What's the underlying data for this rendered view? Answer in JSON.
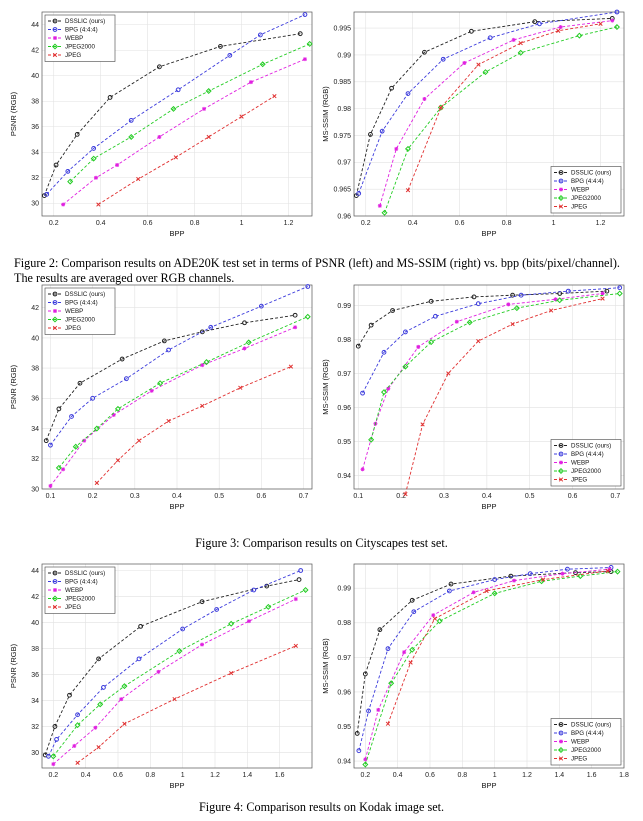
{
  "figures": [
    {
      "number_label": "Figure 2:",
      "caption": "Comparison results on ADE20K test set in terms of PSNR (left) and MS-SSIM (right) vs. bpp (bits/pixel/channel). The results are averaged over RGB channels."
    },
    {
      "number_label": "Figure 3:",
      "caption": "Comparison results on Cityscapes test set."
    },
    {
      "number_label": "Figure 4:",
      "caption": "Comparison results on Kodak image set."
    }
  ],
  "series_styles": [
    {
      "name": "DSSLIC (ours)",
      "color": "#222222",
      "marker": "circle",
      "dash": "3,2"
    },
    {
      "name": "BPG (4:4:4)",
      "color": "#3b3bdc",
      "marker": "circle",
      "dash": "3,2"
    },
    {
      "name": "WEBP",
      "color": "#e020e0",
      "marker": "star",
      "dash": "3,2"
    },
    {
      "name": "JPEG2000",
      "color": "#22cc22",
      "marker": "diamond",
      "dash": "3,2"
    },
    {
      "name": "JPEG",
      "color": "#e03030",
      "marker": "x",
      "dash": "3,2"
    }
  ],
  "chart_data": [
    {
      "type": "line",
      "figure": 2,
      "xlabel": "BPP",
      "ylabel": "PSNR (RGB)",
      "xlim": [
        0.15,
        1.3
      ],
      "ylim": [
        29,
        45
      ],
      "xticks": [
        0.2,
        0.4,
        0.6,
        0.8,
        1,
        1.2
      ],
      "yticks": [
        30,
        32,
        34,
        36,
        38,
        40,
        42,
        44
      ],
      "grid": true,
      "legend": "top-left",
      "series": [
        {
          "name": "DSSLIC (ours)",
          "x": [
            0.16,
            0.21,
            0.3,
            0.44,
            0.65,
            0.91,
            1.25
          ],
          "y": [
            30.6,
            33.0,
            35.4,
            38.3,
            40.7,
            42.3,
            43.3
          ]
        },
        {
          "name": "BPG (4:4:4)",
          "x": [
            0.17,
            0.26,
            0.37,
            0.53,
            0.73,
            0.95,
            1.08,
            1.27
          ],
          "y": [
            30.7,
            32.5,
            34.3,
            36.5,
            38.9,
            41.6,
            43.2,
            44.8
          ]
        },
        {
          "name": "WEBP",
          "x": [
            0.24,
            0.38,
            0.47,
            0.65,
            0.84,
            1.04,
            1.27
          ],
          "y": [
            29.9,
            32.0,
            33.0,
            35.2,
            37.4,
            39.5,
            41.3
          ]
        },
        {
          "name": "JPEG2000",
          "x": [
            0.27,
            0.37,
            0.53,
            0.71,
            0.86,
            1.09,
            1.29
          ],
          "y": [
            31.7,
            33.5,
            35.2,
            37.4,
            38.8,
            40.9,
            42.5
          ]
        },
        {
          "name": "JPEG",
          "x": [
            0.39,
            0.56,
            0.72,
            0.86,
            1.0,
            1.14
          ],
          "y": [
            29.9,
            31.9,
            33.6,
            35.2,
            36.8,
            38.4
          ]
        }
      ]
    },
    {
      "type": "line",
      "figure": 2,
      "xlabel": "BPP",
      "ylabel": "MS-SSIM (RGB)",
      "xlim": [
        0.15,
        1.3
      ],
      "ylim": [
        0.96,
        0.998
      ],
      "xticks": [
        0.2,
        0.4,
        0.6,
        0.8,
        1,
        1.2
      ],
      "yticks": [
        0.96,
        0.965,
        0.97,
        0.975,
        0.98,
        0.985,
        0.99,
        0.995
      ],
      "grid": true,
      "legend": "bottom-right",
      "series": [
        {
          "name": "DSSLIC (ours)",
          "x": [
            0.16,
            0.22,
            0.31,
            0.45,
            0.65,
            0.92,
            1.25
          ],
          "y": [
            0.9638,
            0.9752,
            0.9838,
            0.9905,
            0.9944,
            0.9962,
            0.9968
          ]
        },
        {
          "name": "BPG (4:4:4)",
          "x": [
            0.17,
            0.27,
            0.38,
            0.53,
            0.73,
            0.94,
            1.27
          ],
          "y": [
            0.9642,
            0.9758,
            0.9828,
            0.9892,
            0.9932,
            0.9958,
            0.998
          ]
        },
        {
          "name": "WEBP",
          "x": [
            0.26,
            0.33,
            0.45,
            0.62,
            0.83,
            1.03,
            1.25
          ],
          "y": [
            0.9619,
            0.9725,
            0.9818,
            0.9885,
            0.9928,
            0.9952,
            0.9964
          ]
        },
        {
          "name": "JPEG2000",
          "x": [
            0.28,
            0.38,
            0.52,
            0.71,
            0.86,
            1.11,
            1.27
          ],
          "y": [
            0.9606,
            0.9725,
            0.9802,
            0.9868,
            0.9904,
            0.9936,
            0.9952
          ]
        },
        {
          "name": "JPEG",
          "x": [
            0.38,
            0.52,
            0.68,
            0.86,
            1.02,
            1.2
          ],
          "y": [
            0.9648,
            0.9802,
            0.9882,
            0.9922,
            0.9945,
            0.9958
          ]
        }
      ]
    },
    {
      "type": "line",
      "figure": 3,
      "xlabel": "BPP",
      "ylabel": "PSNR (RGB)",
      "xlim": [
        0.08,
        0.72
      ],
      "ylim": [
        30,
        43.5
      ],
      "xticks": [
        0.1,
        0.2,
        0.3,
        0.4,
        0.5,
        0.6,
        0.7
      ],
      "yticks": [
        30,
        32,
        34,
        36,
        38,
        40,
        42
      ],
      "grid": true,
      "legend": "top-left",
      "series": [
        {
          "name": "DSSLIC (ours)",
          "x": [
            0.09,
            0.12,
            0.17,
            0.27,
            0.37,
            0.46,
            0.56,
            0.68
          ],
          "y": [
            33.2,
            35.3,
            37.0,
            38.6,
            39.8,
            40.4,
            41.0,
            41.5
          ]
        },
        {
          "name": "BPG (4:4:4)",
          "x": [
            0.1,
            0.15,
            0.2,
            0.28,
            0.38,
            0.48,
            0.6,
            0.71
          ],
          "y": [
            32.9,
            34.8,
            36.0,
            37.3,
            39.2,
            40.7,
            42.1,
            43.4
          ]
        },
        {
          "name": "WEBP",
          "x": [
            0.1,
            0.13,
            0.18,
            0.25,
            0.34,
            0.46,
            0.56,
            0.68
          ],
          "y": [
            30.2,
            31.3,
            33.2,
            34.9,
            36.5,
            38.2,
            39.3,
            40.7
          ]
        },
        {
          "name": "JPEG2000",
          "x": [
            0.12,
            0.16,
            0.21,
            0.26,
            0.36,
            0.47,
            0.57,
            0.71
          ],
          "y": [
            31.4,
            32.8,
            34.0,
            35.3,
            37.0,
            38.4,
            39.7,
            41.4
          ]
        },
        {
          "name": "JPEG",
          "x": [
            0.21,
            0.26,
            0.31,
            0.38,
            0.46,
            0.55,
            0.67
          ],
          "y": [
            30.4,
            31.9,
            33.2,
            34.5,
            35.5,
            36.7,
            38.1
          ]
        }
      ]
    },
    {
      "type": "line",
      "figure": 3,
      "xlabel": "BPP",
      "ylabel": "MS-SSIM (RGB)",
      "xlim": [
        0.09,
        0.72
      ],
      "ylim": [
        0.936,
        0.996
      ],
      "xticks": [
        0.1,
        0.2,
        0.3,
        0.4,
        0.5,
        0.6,
        0.7
      ],
      "yticks": [
        0.94,
        0.95,
        0.96,
        0.97,
        0.98,
        0.99
      ],
      "grid": true,
      "legend": "bottom-right",
      "series": [
        {
          "name": "DSSLIC (ours)",
          "x": [
            0.1,
            0.13,
            0.18,
            0.27,
            0.37,
            0.46,
            0.57,
            0.68
          ],
          "y": [
            0.978,
            0.9842,
            0.9885,
            0.9912,
            0.9925,
            0.993,
            0.9935,
            0.9942
          ]
        },
        {
          "name": "BPG (4:4:4)",
          "x": [
            0.11,
            0.16,
            0.21,
            0.28,
            0.38,
            0.48,
            0.59,
            0.71
          ],
          "y": [
            0.9642,
            0.9762,
            0.9822,
            0.9868,
            0.9905,
            0.993,
            0.9942,
            0.9952
          ]
        },
        {
          "name": "WEBP",
          "x": [
            0.11,
            0.14,
            0.17,
            0.24,
            0.33,
            0.45,
            0.56,
            0.67
          ],
          "y": [
            0.9418,
            0.9552,
            0.9655,
            0.9778,
            0.9852,
            0.9903,
            0.9918,
            0.9935
          ]
        },
        {
          "name": "JPEG2000",
          "x": [
            0.13,
            0.16,
            0.21,
            0.27,
            0.36,
            0.47,
            0.57,
            0.71
          ],
          "y": [
            0.9505,
            0.9645,
            0.972,
            0.9792,
            0.985,
            0.9892,
            0.9915,
            0.9935
          ]
        },
        {
          "name": "JPEG",
          "x": [
            0.21,
            0.25,
            0.31,
            0.38,
            0.46,
            0.55,
            0.67
          ],
          "y": [
            0.9345,
            0.955,
            0.97,
            0.9795,
            0.9845,
            0.9885,
            0.992
          ]
        }
      ]
    },
    {
      "type": "line",
      "figure": 4,
      "xlabel": "BPP",
      "ylabel": "PSNR (RGB)",
      "xlim": [
        0.13,
        1.8
      ],
      "ylim": [
        28.8,
        44.5
      ],
      "xticks": [
        0.2,
        0.4,
        0.6,
        0.8,
        1,
        1.2,
        1.4,
        1.6
      ],
      "yticks": [
        30,
        32,
        34,
        36,
        38,
        40,
        42,
        44
      ],
      "grid": true,
      "legend": "top-left",
      "series": [
        {
          "name": "DSSLIC (ours)",
          "x": [
            0.15,
            0.21,
            0.3,
            0.48,
            0.74,
            1.12,
            1.52,
            1.72
          ],
          "y": [
            29.8,
            32.0,
            34.4,
            37.2,
            39.7,
            41.6,
            42.8,
            43.3
          ]
        },
        {
          "name": "BPG (4:4:4)",
          "x": [
            0.17,
            0.22,
            0.35,
            0.51,
            0.73,
            1.0,
            1.21,
            1.44,
            1.73
          ],
          "y": [
            29.7,
            31.0,
            32.9,
            35.0,
            37.2,
            39.5,
            41.0,
            42.5,
            44.0
          ]
        },
        {
          "name": "WEBP",
          "x": [
            0.2,
            0.33,
            0.46,
            0.62,
            0.85,
            1.12,
            1.41,
            1.7
          ],
          "y": [
            29.1,
            30.5,
            31.9,
            34.1,
            36.2,
            38.3,
            40.1,
            41.8
          ]
        },
        {
          "name": "JPEG2000",
          "x": [
            0.2,
            0.35,
            0.49,
            0.64,
            0.98,
            1.3,
            1.53,
            1.76
          ],
          "y": [
            29.7,
            32.1,
            33.7,
            35.1,
            37.8,
            39.9,
            41.2,
            42.5
          ]
        },
        {
          "name": "JPEG",
          "x": [
            0.35,
            0.48,
            0.64,
            0.95,
            1.3,
            1.7
          ],
          "y": [
            29.2,
            30.4,
            32.2,
            34.1,
            36.1,
            38.2
          ]
        }
      ]
    },
    {
      "type": "line",
      "figure": 4,
      "xlabel": "BPP",
      "ylabel": "MS-SSIM (RGB)",
      "xlim": [
        0.13,
        1.8
      ],
      "ylim": [
        0.938,
        0.997
      ],
      "xticks": [
        0.2,
        0.4,
        0.6,
        0.8,
        1,
        1.2,
        1.4,
        1.6,
        1.8
      ],
      "yticks": [
        0.94,
        0.95,
        0.96,
        0.97,
        0.98,
        0.99
      ],
      "grid": true,
      "legend": "bottom-right",
      "series": [
        {
          "name": "DSSLIC (ours)",
          "x": [
            0.15,
            0.2,
            0.29,
            0.49,
            0.73,
            1.1,
            1.5,
            1.72
          ],
          "y": [
            0.948,
            0.9652,
            0.978,
            0.9865,
            0.9912,
            0.9935,
            0.9945,
            0.9948
          ]
        },
        {
          "name": "BPG (4:4:4)",
          "x": [
            0.16,
            0.22,
            0.34,
            0.5,
            0.72,
            1.0,
            1.22,
            1.45,
            1.72
          ],
          "y": [
            0.943,
            0.9545,
            0.9725,
            0.9832,
            0.9892,
            0.9925,
            0.9942,
            0.9955,
            0.996
          ]
        },
        {
          "name": "WEBP",
          "x": [
            0.2,
            0.28,
            0.44,
            0.62,
            0.87,
            1.12,
            1.42,
            1.71
          ],
          "y": [
            0.9405,
            0.9548,
            0.9715,
            0.9822,
            0.9888,
            0.9922,
            0.9942,
            0.9955
          ]
        },
        {
          "name": "JPEG2000",
          "x": [
            0.2,
            0.36,
            0.49,
            0.66,
            1.0,
            1.29,
            1.53,
            1.76
          ],
          "y": [
            0.939,
            0.9625,
            0.9722,
            0.9805,
            0.9885,
            0.992,
            0.9935,
            0.9948
          ]
        },
        {
          "name": "JPEG",
          "x": [
            0.34,
            0.48,
            0.63,
            0.95,
            1.3,
            1.7
          ],
          "y": [
            0.9508,
            0.9685,
            0.9812,
            0.9892,
            0.9925,
            0.995
          ]
        }
      ]
    }
  ]
}
